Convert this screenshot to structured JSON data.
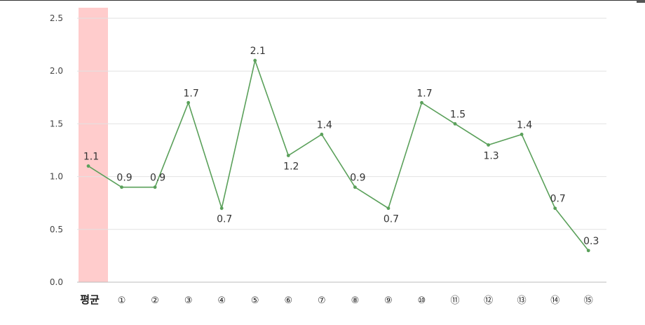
{
  "chart_data": {
    "type": "line",
    "categories": [
      "평균",
      "①",
      "②",
      "③",
      "④",
      "⑤",
      "⑥",
      "⑦",
      "⑧",
      "⑨",
      "⑩",
      "⑪",
      "⑫",
      "⑬",
      "⑭",
      "⑮"
    ],
    "values": [
      1.1,
      0.9,
      0.9,
      1.7,
      0.7,
      2.1,
      1.2,
      1.4,
      0.9,
      0.7,
      1.7,
      1.5,
      1.3,
      1.4,
      0.7,
      0.3
    ],
    "data_labels": [
      "1.1",
      "0.9",
      "0.9",
      "1.7",
      "0.7",
      "2.1",
      "1.2",
      "1.4",
      "0.9",
      "0.7",
      "1.7",
      "1.5",
      "1.3",
      "1.4",
      "0.7",
      "0.3"
    ],
    "yticks": [
      "0.0",
      "0.5",
      "1.0",
      "1.5",
      "2.0",
      "2.5"
    ],
    "ylim": [
      0,
      2.5
    ],
    "grid": true,
    "highlight_category": "평균",
    "colors": {
      "line": "#5aa05a",
      "highlight": "#ffcccc",
      "grid": "#e2e2e2"
    }
  }
}
